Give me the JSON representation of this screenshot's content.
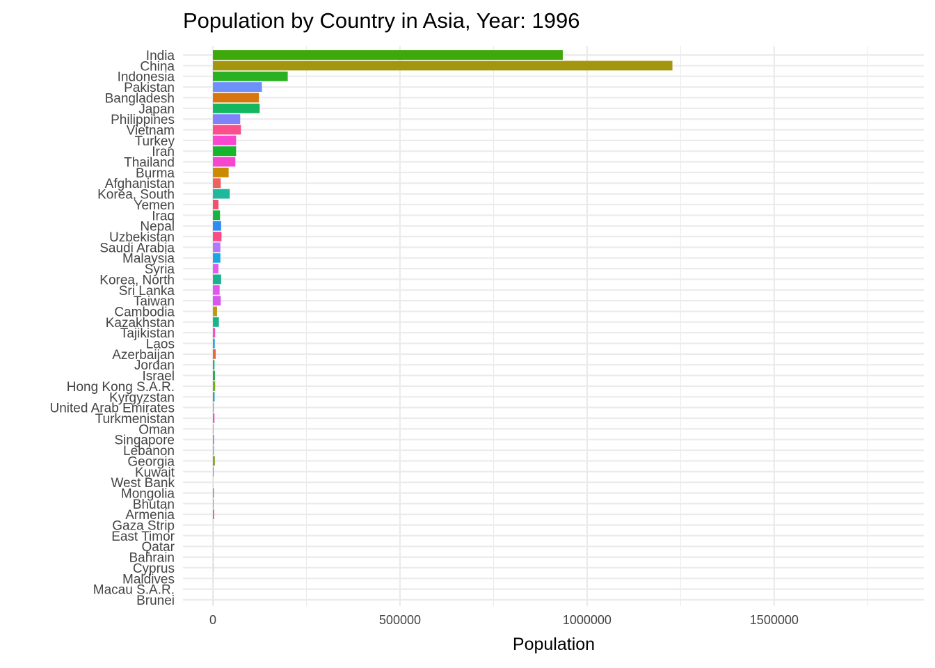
{
  "chart_data": {
    "type": "bar",
    "orientation": "horizontal",
    "title": "Population by Country in Asia, Year: 1996",
    "xlabel": "Population",
    "ylabel": "",
    "xlim": [
      -80000,
      1900000
    ],
    "x_ticks": [
      0,
      500000,
      1000000,
      1500000
    ],
    "x_tick_labels": [
      "0",
      "500000",
      "1000000",
      "1500000"
    ],
    "grid": true,
    "legend": "none",
    "series": [
      {
        "values": [
          {
            "category": "India",
            "value": 935000,
            "color": "#3ea90b"
          },
          {
            "category": "China",
            "value": 1228000,
            "color": "#a3950e"
          },
          {
            "category": "Indonesia",
            "value": 200000,
            "color": "#2ab022"
          },
          {
            "category": "Pakistan",
            "value": 131000,
            "color": "#6d90fb"
          },
          {
            "category": "Bangladesh",
            "value": 123000,
            "color": "#d7760f"
          },
          {
            "category": "Japan",
            "value": 125000,
            "color": "#14b760"
          },
          {
            "category": "Philippines",
            "value": 73000,
            "color": "#7f82f8"
          },
          {
            "category": "Vietnam",
            "value": 75000,
            "color": "#fa4f8b"
          },
          {
            "category": "Turkey",
            "value": 62000,
            "color": "#fb46d0"
          },
          {
            "category": "Iran",
            "value": 62000,
            "color": "#16b52c"
          },
          {
            "category": "Thailand",
            "value": 60000,
            "color": "#f546cf"
          },
          {
            "category": "Burma",
            "value": 42000,
            "color": "#c98b00"
          },
          {
            "category": "Afghanistan",
            "value": 21000,
            "color": "#f06060"
          },
          {
            "category": "Korea, South",
            "value": 45000,
            "color": "#1fb89c"
          },
          {
            "category": "Yemen",
            "value": 15000,
            "color": "#f3506f"
          },
          {
            "category": "Iraq",
            "value": 19000,
            "color": "#16b340"
          },
          {
            "category": "Nepal",
            "value": 22000,
            "color": "#2f8cf5"
          },
          {
            "category": "Uzbekistan",
            "value": 23000,
            "color": "#fa4d86"
          },
          {
            "category": "Saudi Arabia",
            "value": 20000,
            "color": "#b476fa"
          },
          {
            "category": "Malaysia",
            "value": 20000,
            "color": "#1aa5e4"
          },
          {
            "category": "Syria",
            "value": 15000,
            "color": "#e25cf0"
          },
          {
            "category": "Korea, North",
            "value": 22000,
            "color": "#18b38e"
          },
          {
            "category": "Sri Lanka",
            "value": 18000,
            "color": "#e257ef"
          },
          {
            "category": "Taiwan",
            "value": 21000,
            "color": "#d956ef"
          },
          {
            "category": "Cambodia",
            "value": 11000,
            "color": "#bc9a0e"
          },
          {
            "category": "Kazakhstan",
            "value": 16000,
            "color": "#17b38a"
          },
          {
            "category": "Tajikistan",
            "value": 6000,
            "color": "#f650c3"
          },
          {
            "category": "Laos",
            "value": 5000,
            "color": "#26a7d7"
          },
          {
            "category": "Azerbaijan",
            "value": 7500,
            "color": "#e4683b"
          },
          {
            "category": "Jordan",
            "value": 4300,
            "color": "#19b380"
          },
          {
            "category": "Israel",
            "value": 5500,
            "color": "#2aaa55"
          },
          {
            "category": "Hong Kong S.A.R.",
            "value": 6000,
            "color": "#78ad19"
          },
          {
            "category": "Kyrgyzstan",
            "value": 4500,
            "color": "#1aa6c8"
          },
          {
            "category": "United Arab Emirates",
            "value": 2500,
            "color": "#fa66c6"
          },
          {
            "category": "Turkmenistan",
            "value": 4200,
            "color": "#f04fbd"
          },
          {
            "category": "Oman",
            "value": 2200,
            "color": "#a8a8f5"
          },
          {
            "category": "Singapore",
            "value": 3200,
            "color": "#c06bf0"
          },
          {
            "category": "Lebanon",
            "value": 3000,
            "color": "#5fc3c0"
          },
          {
            "category": "Georgia",
            "value": 5200,
            "color": "#7aa924"
          },
          {
            "category": "Kuwait",
            "value": 1800,
            "color": "#23a9b0"
          },
          {
            "category": "West Bank",
            "value": 1600,
            "color": "#e8c8f2"
          },
          {
            "category": "Mongolia",
            "value": 2400,
            "color": "#2f9be0"
          },
          {
            "category": "Bhutan",
            "value": 1900,
            "color": "#e3863a"
          },
          {
            "category": "Armenia",
            "value": 3500,
            "color": "#e36c52"
          },
          {
            "category": "Gaza Strip",
            "value": 1000,
            "color": "#d9c7a2"
          },
          {
            "category": "East Timor",
            "value": 850,
            "color": "#d7c67a"
          },
          {
            "category": "Qatar",
            "value": 500,
            "color": "#d0c9f5"
          },
          {
            "category": "Bahrain",
            "value": 580,
            "color": "#c9b6e8"
          },
          {
            "category": "Cyprus",
            "value": 750,
            "color": "#e7b292"
          },
          {
            "category": "Maldives",
            "value": 260,
            "color": "#cfd9e8"
          },
          {
            "category": "Macau S.A.R.",
            "value": 420,
            "color": "#d3e4f5"
          },
          {
            "category": "Brunei",
            "value": 300,
            "color": "#f5c9c9"
          }
        ]
      }
    ]
  }
}
